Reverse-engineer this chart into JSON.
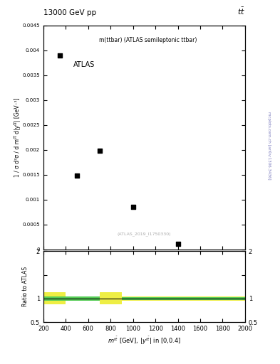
{
  "title_left": "13000 GeV pp",
  "title_right": "tt",
  "main_annotation": "m(ttbar) (ATLAS semileptonic ttbar)",
  "atlas_label": "ATLAS",
  "inspire_label": "(ATLAS_2019_I1750330)",
  "ylabel_ratio": "Ratio to ATLAS",
  "data_x": [
    350,
    500,
    700,
    1000,
    1400
  ],
  "data_y": [
    0.0039,
    0.00148,
    0.00198,
    0.00085,
    0.000115
  ],
  "xlim": [
    200,
    2000
  ],
  "ylim_main": [
    0,
    0.0045
  ],
  "ylim_ratio": [
    0.5,
    2.0
  ],
  "ratio_line_y": 1.0,
  "marker_color": "black",
  "marker_size": 5,
  "green_color": "#55cc55",
  "yellow_color": "#eeee44",
  "background_color": "white",
  "side_text": "mcplots.cern.ch [arXiv:1306.3436]"
}
